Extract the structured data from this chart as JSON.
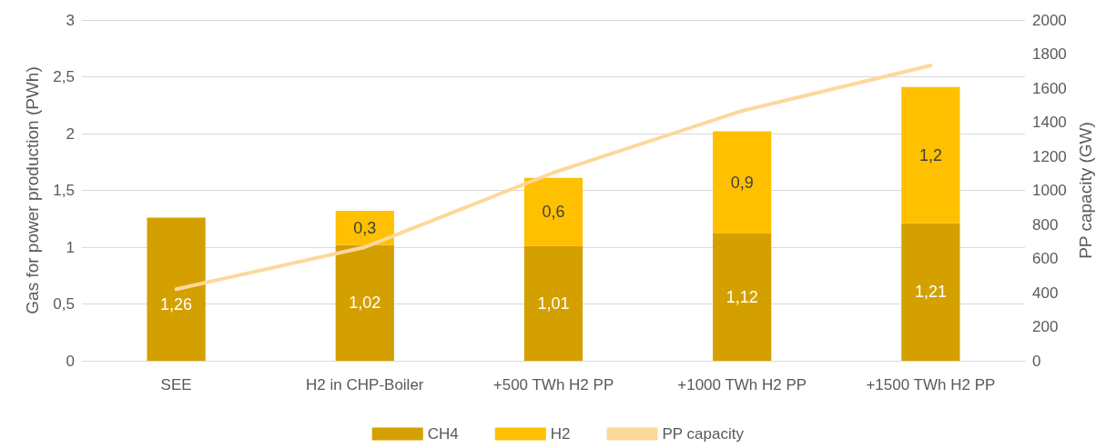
{
  "chart_data": {
    "type": "bar",
    "stacked": true,
    "categories": [
      "SEE",
      "H2 in CHP-Boiler",
      "+500 TWh H2 PP",
      "+1000 TWh H2 PP",
      "+1500 TWh H2 PP"
    ],
    "series": [
      {
        "name": "CH4",
        "color": "#d4a000",
        "values": [
          1.26,
          1.02,
          1.01,
          1.12,
          1.21
        ],
        "value_labels": [
          "1,26",
          "1,02",
          "1,01",
          "1,12",
          "1,21"
        ]
      },
      {
        "name": "H2",
        "color": "#ffc000",
        "values": [
          null,
          0.3,
          0.6,
          0.9,
          1.2
        ],
        "value_labels": [
          null,
          "0,3",
          "0,6",
          "0,9",
          "1,2"
        ]
      },
      {
        "name": "PP capacity",
        "type": "line",
        "axis": "y2",
        "color": "#fdd89b",
        "values": [
          420,
          667,
          1104,
          1467,
          1733
        ],
        "marker": "none"
      }
    ],
    "ylabel": "Gas for power production (PWh)",
    "y2label": "PP capacity (GW)",
    "ylim": [
      0,
      3
    ],
    "yticks": [
      0,
      {
        "value": 0.5,
        "label": "0,5"
      },
      1,
      {
        "value": 1.5,
        "label": "1,5"
      },
      2,
      {
        "value": 2.5,
        "label": "2,5"
      },
      3
    ],
    "y2lim": [
      0,
      2000
    ],
    "y2ticks": [
      0,
      200,
      400,
      600,
      800,
      1000,
      1200,
      1400,
      1600,
      1800,
      2000
    ],
    "grid": "y",
    "legend": "bottom"
  }
}
